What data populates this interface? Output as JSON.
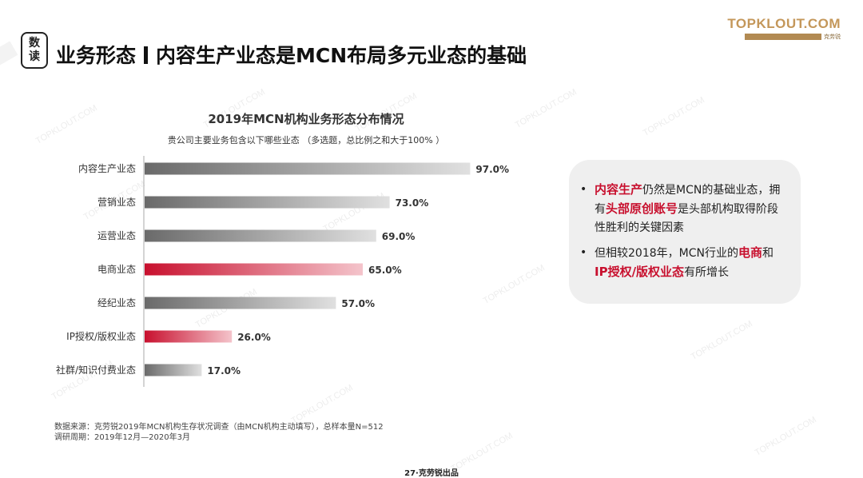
{
  "badge": {
    "line1": "数",
    "line2": "读"
  },
  "title": {
    "part1": "业务形态",
    "part2": "内容生产业态是MCN布局多元业态的基础"
  },
  "logo": {
    "word": "TOPKLOUT.COM",
    "sub_cn": "克劳锐"
  },
  "watermark": "TOPKLOUT.COM",
  "colors": {
    "accent": "#c8102e",
    "bar_gray": "#707070",
    "logo_gold": "#c4975a"
  },
  "chart_data": {
    "type": "bar",
    "orientation": "horizontal",
    "title": "2019年MCN机构业务形态分布情况",
    "subtitle": "贵公司主要业务包含以下哪些业态 （多选题，总比例之和大于100% ）",
    "categories": [
      "内容生产业态",
      "营销业态",
      "运营业态",
      "电商业态",
      "经纪业态",
      "IP授权/版权业态",
      "社群/知识付费业态"
    ],
    "values": [
      97.0,
      73.0,
      69.0,
      65.0,
      57.0,
      26.0,
      17.0
    ],
    "value_labels": [
      "97.0%",
      "73.0%",
      "69.0%",
      "65.0%",
      "57.0%",
      "26.0%",
      "17.0%"
    ],
    "highlighted": [
      false,
      false,
      false,
      true,
      false,
      true,
      false
    ],
    "xlim": [
      0,
      100
    ],
    "grid": false,
    "legend": "none"
  },
  "callout": {
    "bullet": "•",
    "item1": {
      "hl1": "内容生产",
      "t1": "仍然是MCN的基础业态，拥有",
      "hl2": "头部原创账号",
      "t2": "是头部机构取得阶段性胜利的关键因素"
    },
    "item2": {
      "t1": "但相较2018年，MCN行业的",
      "hl1": "电商",
      "t2": "和",
      "hl2": "IP授权/版权业态",
      "t3": "有所增长"
    }
  },
  "source": {
    "line1": "数据来源：克劳锐2019年MCN机构生存状况调查（由MCN机构主动填写），总样本量N=512",
    "line2": "调研周期：2019年12月—2020年3月"
  },
  "footer": "27·克劳锐出品"
}
